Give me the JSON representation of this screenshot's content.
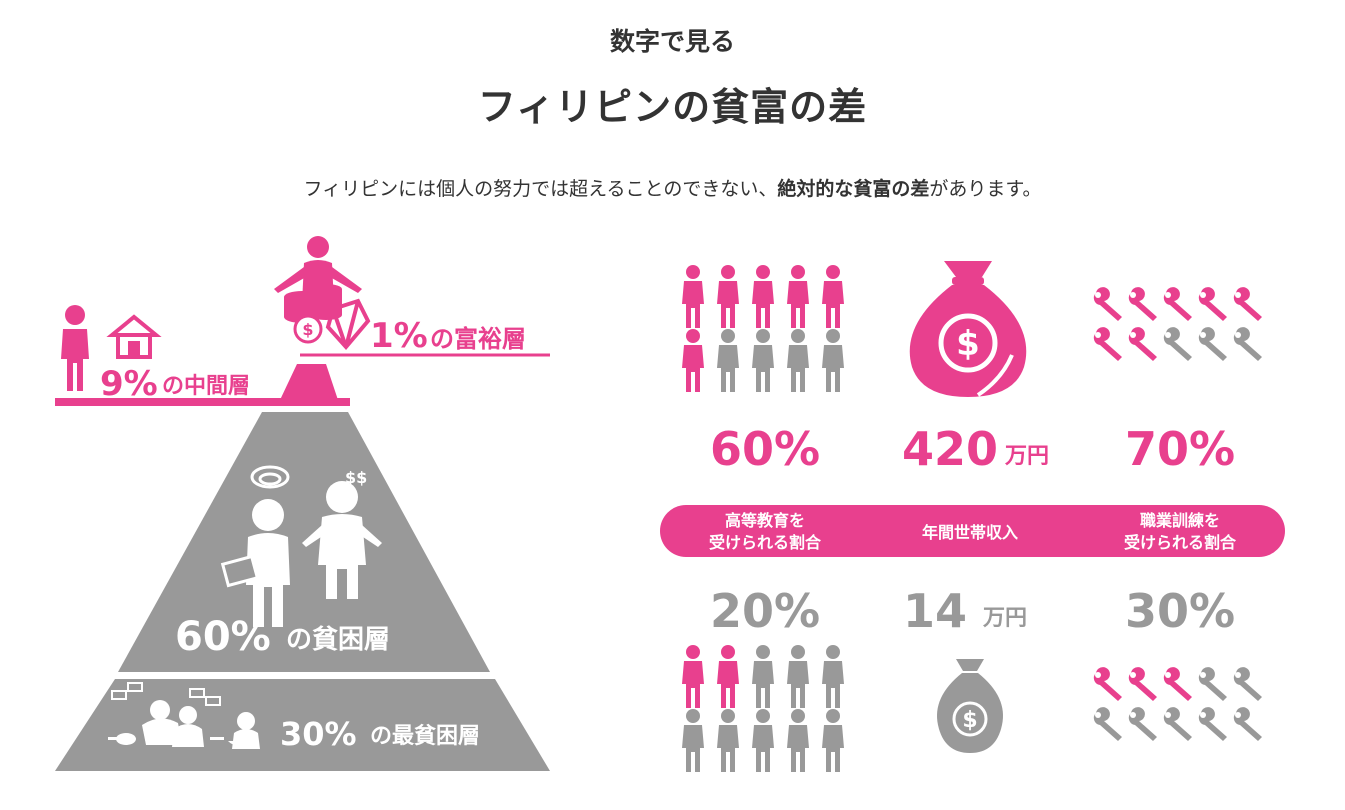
{
  "header": {
    "kicker": "数字で見る",
    "title": "フィリピンの貧富の差",
    "lead_before": "フィリピンには個人の努力では超えることのできない、",
    "lead_bold": "絶対的な貧富の差",
    "lead_after": "があります。"
  },
  "pyramid": {
    "tiers": [
      {
        "percent": "1%",
        "label": "の富裕層",
        "color": "#e8408e"
      },
      {
        "percent": "9%",
        "label": "の中間層",
        "color": "#e8408e"
      },
      {
        "percent": "60%",
        "label": "の貧困層",
        "color": "#999999"
      },
      {
        "percent": "30%",
        "label": "の最貧困層",
        "color": "#999999"
      }
    ]
  },
  "stats": {
    "colors": {
      "pink": "#e8408e",
      "gray": "#999999"
    },
    "columns": [
      {
        "icon": "person-icon",
        "top_value": "60%",
        "top_filled": 6,
        "label_line1": "高等教育を",
        "label_line2": "受けられる割合",
        "bottom_value": "20%",
        "bottom_filled": 2,
        "total": 10
      },
      {
        "icon": "money-bag-icon",
        "top_value_num": "420",
        "top_value_unit": "万円",
        "label_line1": "年間世帯収入",
        "label_line2": "",
        "bottom_value_num": "14",
        "bottom_value_unit": "万円"
      },
      {
        "icon": "wrench-icon",
        "top_value": "70%",
        "top_filled": 7,
        "label_line1": "職業訓練を",
        "label_line2": "受けられる割合",
        "bottom_value": "30%",
        "bottom_filled": 3,
        "total": 10
      }
    ]
  }
}
